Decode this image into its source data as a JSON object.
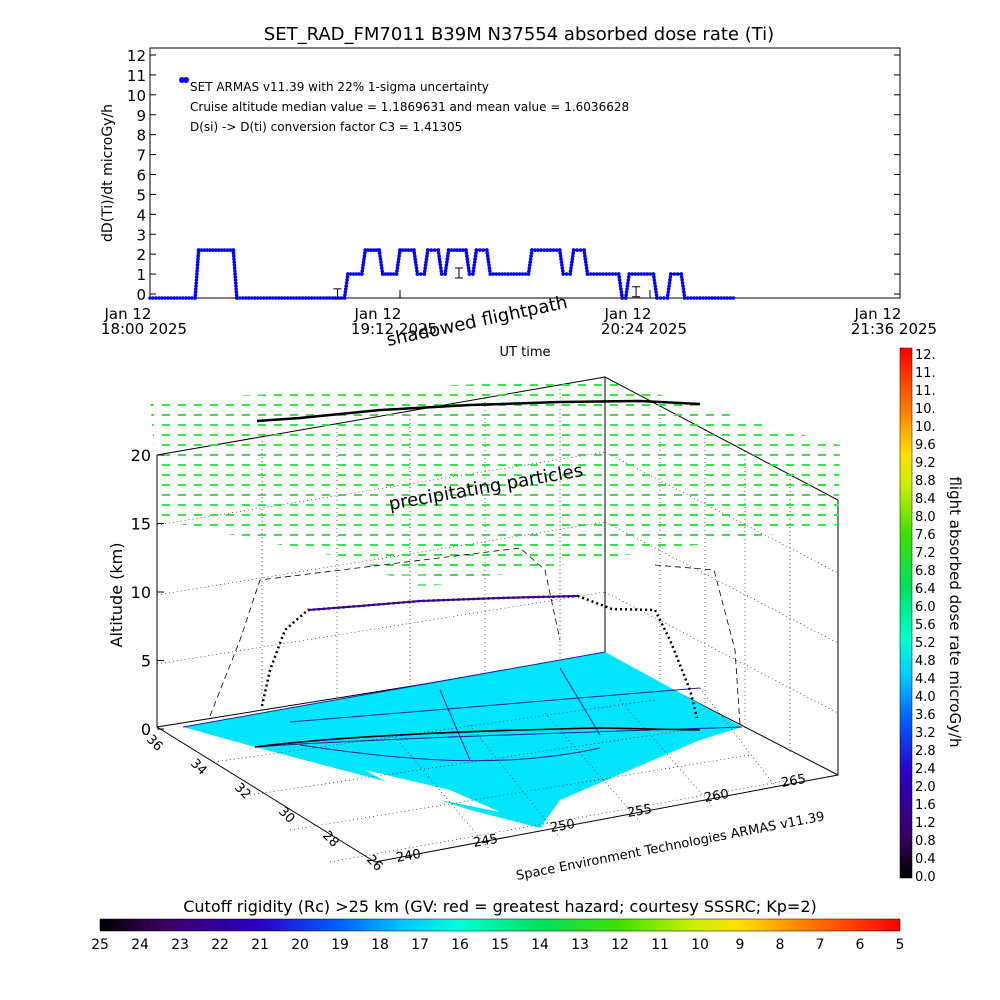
{
  "top_chart": {
    "title": "SET_RAD_FM7011  B39M N37554 absorbed dose rate (Ti)",
    "ylabel": "dD(Ti)/dt microGy/h",
    "yticks": [
      "0",
      "1",
      "2",
      "3",
      "4",
      "5",
      "6",
      "7",
      "8",
      "9",
      "10",
      "11",
      "12"
    ],
    "xticks": [
      {
        "line1": "Jan 12",
        "line2": "18:00 2025"
      },
      {
        "line1": "Jan 12",
        "line2": "19:12 2025"
      },
      {
        "line1": "Jan 12",
        "line2": "20:24 2025"
      },
      {
        "line1": "Jan 12",
        "line2": "21:36 2025"
      }
    ],
    "xlabel": "UT time",
    "legend_label": "SET ARMAS v11.39 with 22% 1-sigma uncertainty",
    "annotations": [
      "Cruise altitude median value = 1.1869631 and mean value = 1.6036628",
      "D(si) -> D(ti) conversion factor C3 = 1.41305"
    ]
  },
  "chart_data": {
    "type": "line",
    "title": "SET_RAD_FM7011  B39M N37554 absorbed dose rate (Ti)",
    "xlabel": "UT time",
    "ylabel": "dD(Ti)/dt microGy/h",
    "ylim": [
      0,
      12
    ],
    "xlim": [
      "18:00",
      "21:36"
    ],
    "series": [
      {
        "name": "SET ARMAS v11.39 with 22% 1-sigma uncertainty",
        "color": "#0000ff",
        "x": [
          "18:00",
          "18:13",
          "18:14",
          "18:24",
          "18:25",
          "18:56",
          "18:57",
          "19:01",
          "19:02",
          "19:06",
          "19:07",
          "19:11",
          "19:12",
          "19:16",
          "19:17",
          "19:19",
          "19:20",
          "19:23",
          "19:24",
          "19:25",
          "19:26",
          "19:31",
          "19:32",
          "19:33",
          "19:34",
          "19:37",
          "19:38",
          "19:49",
          "19:50",
          "19:58",
          "19:59",
          "20:01",
          "20:02",
          "20:05",
          "20:06",
          "20:15",
          "20:16",
          "20:17",
          "20:18",
          "20:25",
          "20:26",
          "20:29",
          "20:30",
          "20:33",
          "20:34",
          "20:48"
        ],
        "y": [
          0,
          0,
          2.3,
          2.3,
          0,
          0,
          1.15,
          1.15,
          2.3,
          2.3,
          1.15,
          1.15,
          2.3,
          2.3,
          1.15,
          1.15,
          2.3,
          2.3,
          1.15,
          1.15,
          2.3,
          2.3,
          1.15,
          1.15,
          2.3,
          2.3,
          1.15,
          1.15,
          2.3,
          2.3,
          1.15,
          1.15,
          2.3,
          2.3,
          1.15,
          1.15,
          0,
          0,
          1.15,
          1.15,
          0,
          0,
          1.15,
          1.15,
          0,
          0
        ]
      }
    ],
    "error_bars": [
      {
        "x": "18:54",
        "y": 0.2
      },
      {
        "x": "19:29",
        "y": 1.2
      },
      {
        "x": "20:20",
        "y": 0.3
      }
    ]
  },
  "lower_chart": {
    "label_shadowed": "shadowed flightpath",
    "label_particles": "precipitating particles",
    "zlabel": "Altitude (km)",
    "zticks": [
      "0",
      "5",
      "10",
      "15",
      "20"
    ],
    "lat_ticks": [
      "36",
      "34",
      "32",
      "30",
      "28",
      "26"
    ],
    "lon_ticks": [
      "240",
      "245",
      "250",
      "255",
      "260",
      "265"
    ],
    "credit": "Space Environment Technologies ARMAS v11.39",
    "surface_color": "#00e5ff",
    "track_color": "#000000"
  },
  "colorbar_right": {
    "label": "flight absorbed dose rate microGy/h",
    "ticks": [
      "12.",
      "11.",
      "11.",
      "10.",
      "10.",
      "9.6",
      "9.2",
      "8.8",
      "8.4",
      "8.0",
      "7.6",
      "7.2",
      "6.8",
      "6.4",
      "6.0",
      "5.6",
      "5.2",
      "4.8",
      "4.4",
      "4.0",
      "3.6",
      "3.2",
      "2.8",
      "2.4",
      "2.0",
      "1.6",
      "1.2",
      "0.8",
      "0.4",
      "0.0"
    ]
  },
  "colorbar_bottom": {
    "title": "Cutoff rigidity (Rc) >25 km (GV: red = greatest hazard; courtesy SSSRC; Kp=2)",
    "ticks": [
      "25",
      "24",
      "23",
      "22",
      "21",
      "20",
      "19",
      "18",
      "17",
      "16",
      "15",
      "14",
      "13",
      "12",
      "11",
      "10",
      "9",
      "8",
      "7",
      "6",
      "5"
    ]
  }
}
